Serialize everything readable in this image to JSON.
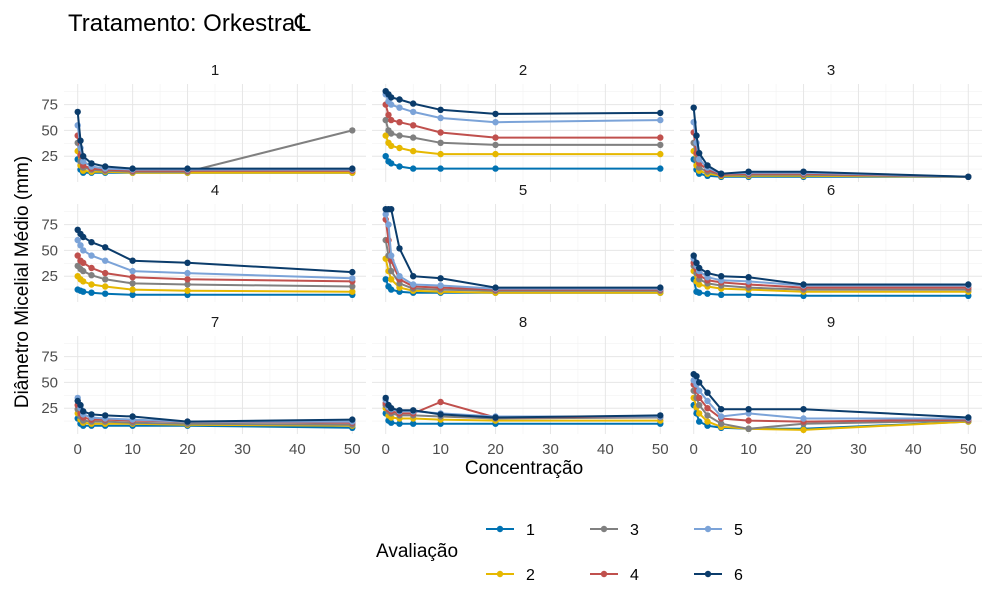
{
  "title": "Tratamento: Orkestra℄",
  "chart_data": {
    "type": "line",
    "facet": "small-multiples 3x3",
    "title": "Tratamento: Orkestra℄",
    "xlabel": "Concentração",
    "ylabel": "Diâmetro Micelial Médio (mm)",
    "xlim": [
      0,
      50
    ],
    "ylim": [
      0,
      95
    ],
    "xticks": [
      0,
      10,
      20,
      30,
      40,
      50
    ],
    "yticks": [
      25,
      50,
      75
    ],
    "x": [
      0,
      0.5,
      1,
      2.5,
      5,
      10,
      20,
      50
    ],
    "grid": true,
    "legend_title": "Avaliação",
    "legend_position": "bottom",
    "series_colors": {
      "1": "#0072B2",
      "2": "#E6B800",
      "3": "#808080",
      "4": "#C0504D",
      "5": "#7BA3D8",
      "6": "#0B3C6B"
    },
    "panels": [
      {
        "label": "1",
        "series": [
          {
            "name": "1",
            "values": [
              22,
              12,
              9,
              9,
              9,
              9,
              9,
              9
            ]
          },
          {
            "name": "2",
            "values": [
              30,
              16,
              11,
              10,
              10,
              9,
              9,
              9
            ]
          },
          {
            "name": "3",
            "values": [
              38,
              20,
              14,
              12,
              11,
              10,
              10,
              50
            ]
          },
          {
            "name": "4",
            "values": [
              45,
              26,
              16,
              13,
              12,
              11,
              11,
              11
            ]
          },
          {
            "name": "5",
            "values": [
              55,
              33,
              20,
              15,
              13,
              12,
              12,
              12
            ]
          },
          {
            "name": "6",
            "values": [
              68,
              40,
              25,
              18,
              15,
              13,
              13,
              13
            ]
          }
        ]
      },
      {
        "label": "2",
        "series": [
          {
            "name": "1",
            "values": [
              25,
              20,
              18,
              15,
              13,
              13,
              13,
              13
            ]
          },
          {
            "name": "2",
            "values": [
              45,
              38,
              35,
              33,
              30,
              27,
              27,
              27
            ]
          },
          {
            "name": "3",
            "values": [
              60,
              50,
              47,
              45,
              43,
              38,
              36,
              36
            ]
          },
          {
            "name": "4",
            "values": [
              75,
              65,
              60,
              58,
              55,
              48,
              43,
              43
            ]
          },
          {
            "name": "5",
            "values": [
              85,
              78,
              75,
              72,
              68,
              62,
              58,
              60
            ]
          },
          {
            "name": "6",
            "values": [
              88,
              85,
              82,
              80,
              76,
              70,
              66,
              67
            ]
          }
        ]
      },
      {
        "label": "3",
        "series": [
          {
            "name": "1",
            "values": [
              22,
              12,
              8,
              6,
              5,
              5,
              5,
              5
            ]
          },
          {
            "name": "2",
            "values": [
              30,
              16,
              11,
              8,
              6,
              6,
              6,
              5
            ]
          },
          {
            "name": "3",
            "values": [
              38,
              22,
              14,
              10,
              7,
              7,
              7,
              5
            ]
          },
          {
            "name": "4",
            "values": [
              48,
              28,
              18,
              12,
              7,
              8,
              8,
              5
            ]
          },
          {
            "name": "5",
            "values": [
              58,
              38,
              22,
              14,
              8,
              9,
              9,
              5
            ]
          },
          {
            "name": "6",
            "values": [
              72,
              45,
              28,
              16,
              8,
              10,
              10,
              5
            ]
          }
        ]
      },
      {
        "label": "4",
        "series": [
          {
            "name": "1",
            "values": [
              12,
              11,
              10,
              9,
              8,
              7,
              7,
              7
            ]
          },
          {
            "name": "2",
            "values": [
              25,
              22,
              20,
              17,
              15,
              12,
              11,
              10
            ]
          },
          {
            "name": "3",
            "values": [
              35,
              32,
              30,
              26,
              22,
              18,
              17,
              15
            ]
          },
          {
            "name": "4",
            "values": [
              45,
              40,
              38,
              33,
              28,
              24,
              22,
              20
            ]
          },
          {
            "name": "5",
            "values": [
              60,
              55,
              50,
              45,
              40,
              30,
              28,
              23
            ]
          },
          {
            "name": "6",
            "values": [
              70,
              66,
              63,
              58,
              53,
              40,
              38,
              29
            ]
          }
        ]
      },
      {
        "label": "5",
        "series": [
          {
            "name": "1",
            "values": [
              22,
              15,
              12,
              10,
              9,
              9,
              9,
              9
            ]
          },
          {
            "name": "2",
            "values": [
              42,
              30,
              22,
              14,
              11,
              10,
              9,
              9
            ]
          },
          {
            "name": "3",
            "values": [
              60,
              45,
              30,
              18,
              13,
              12,
              11,
              11
            ]
          },
          {
            "name": "4",
            "values": [
              80,
              60,
              40,
              22,
              15,
              14,
              12,
              12
            ]
          },
          {
            "name": "5",
            "values": [
              85,
              75,
              45,
              25,
              17,
              16,
              13,
              13
            ]
          },
          {
            "name": "6",
            "values": [
              90,
              90,
              90,
              52,
              25,
              23,
              14,
              14
            ]
          }
        ]
      },
      {
        "label": "6",
        "series": [
          {
            "name": "1",
            "values": [
              22,
              10,
              9,
              8,
              7,
              7,
              6,
              6
            ]
          },
          {
            "name": "2",
            "values": [
              30,
              20,
              17,
              15,
              13,
              12,
              10,
              10
            ]
          },
          {
            "name": "3",
            "values": [
              35,
              28,
              22,
              18,
              16,
              14,
              12,
              12
            ]
          },
          {
            "name": "4",
            "values": [
              38,
              32,
              26,
              21,
              19,
              17,
              14,
              14
            ]
          },
          {
            "name": "5",
            "values": [
              42,
              35,
              30,
              24,
              21,
              20,
              16,
              16
            ]
          },
          {
            "name": "6",
            "values": [
              45,
              38,
              33,
              28,
              25,
              24,
              17,
              17
            ]
          }
        ]
      },
      {
        "label": "7",
        "series": [
          {
            "name": "1",
            "values": [
              15,
              10,
              8,
              8,
              8,
              8,
              8,
              6
            ]
          },
          {
            "name": "2",
            "values": [
              20,
              14,
              11,
              10,
              10,
              10,
              9,
              8
            ]
          },
          {
            "name": "3",
            "values": [
              24,
              17,
              13,
              12,
              12,
              11,
              10,
              9
            ]
          },
          {
            "name": "4",
            "values": [
              28,
              20,
              16,
              14,
              14,
              13,
              12,
              11
            ]
          },
          {
            "name": "5",
            "values": [
              35,
              25,
              19,
              16,
              15,
              14,
              12,
              12
            ]
          },
          {
            "name": "6",
            "values": [
              32,
              28,
              22,
              19,
              18,
              17,
              12,
              14
            ]
          }
        ]
      },
      {
        "label": "8",
        "series": [
          {
            "name": "1",
            "values": [
              20,
              13,
              11,
              10,
              10,
              10,
              10,
              10
            ]
          },
          {
            "name": "2",
            "values": [
              25,
              18,
              16,
              15,
              15,
              14,
              13,
              13
            ]
          },
          {
            "name": "3",
            "values": [
              28,
              22,
              20,
              18,
              18,
              17,
              15,
              16
            ]
          },
          {
            "name": "4",
            "values": [
              30,
              24,
              22,
              20,
              20,
              31,
              16,
              17
            ]
          },
          {
            "name": "5",
            "values": [
              33,
              26,
              24,
              22,
              22,
              20,
              17,
              17
            ]
          },
          {
            "name": "6",
            "values": [
              35,
              28,
              25,
              23,
              23,
              19,
              16,
              18
            ]
          }
        ]
      },
      {
        "label": "9",
        "series": [
          {
            "name": "1",
            "values": [
              28,
              20,
              12,
              8,
              6,
              5,
              5,
              12
            ]
          },
          {
            "name": "2",
            "values": [
              35,
              26,
              20,
              12,
              7,
              5,
              4,
              12
            ]
          },
          {
            "name": "3",
            "values": [
              42,
              35,
              28,
              18,
              10,
              5,
              10,
              13
            ]
          },
          {
            "name": "4",
            "values": [
              48,
              42,
              35,
              25,
              15,
              13,
              12,
              14
            ]
          },
          {
            "name": "5",
            "values": [
              52,
              48,
              42,
              32,
              17,
              20,
              15,
              15
            ]
          },
          {
            "name": "6",
            "values": [
              58,
              56,
              50,
              40,
              24,
              24,
              24,
              16
            ]
          }
        ]
      }
    ]
  }
}
